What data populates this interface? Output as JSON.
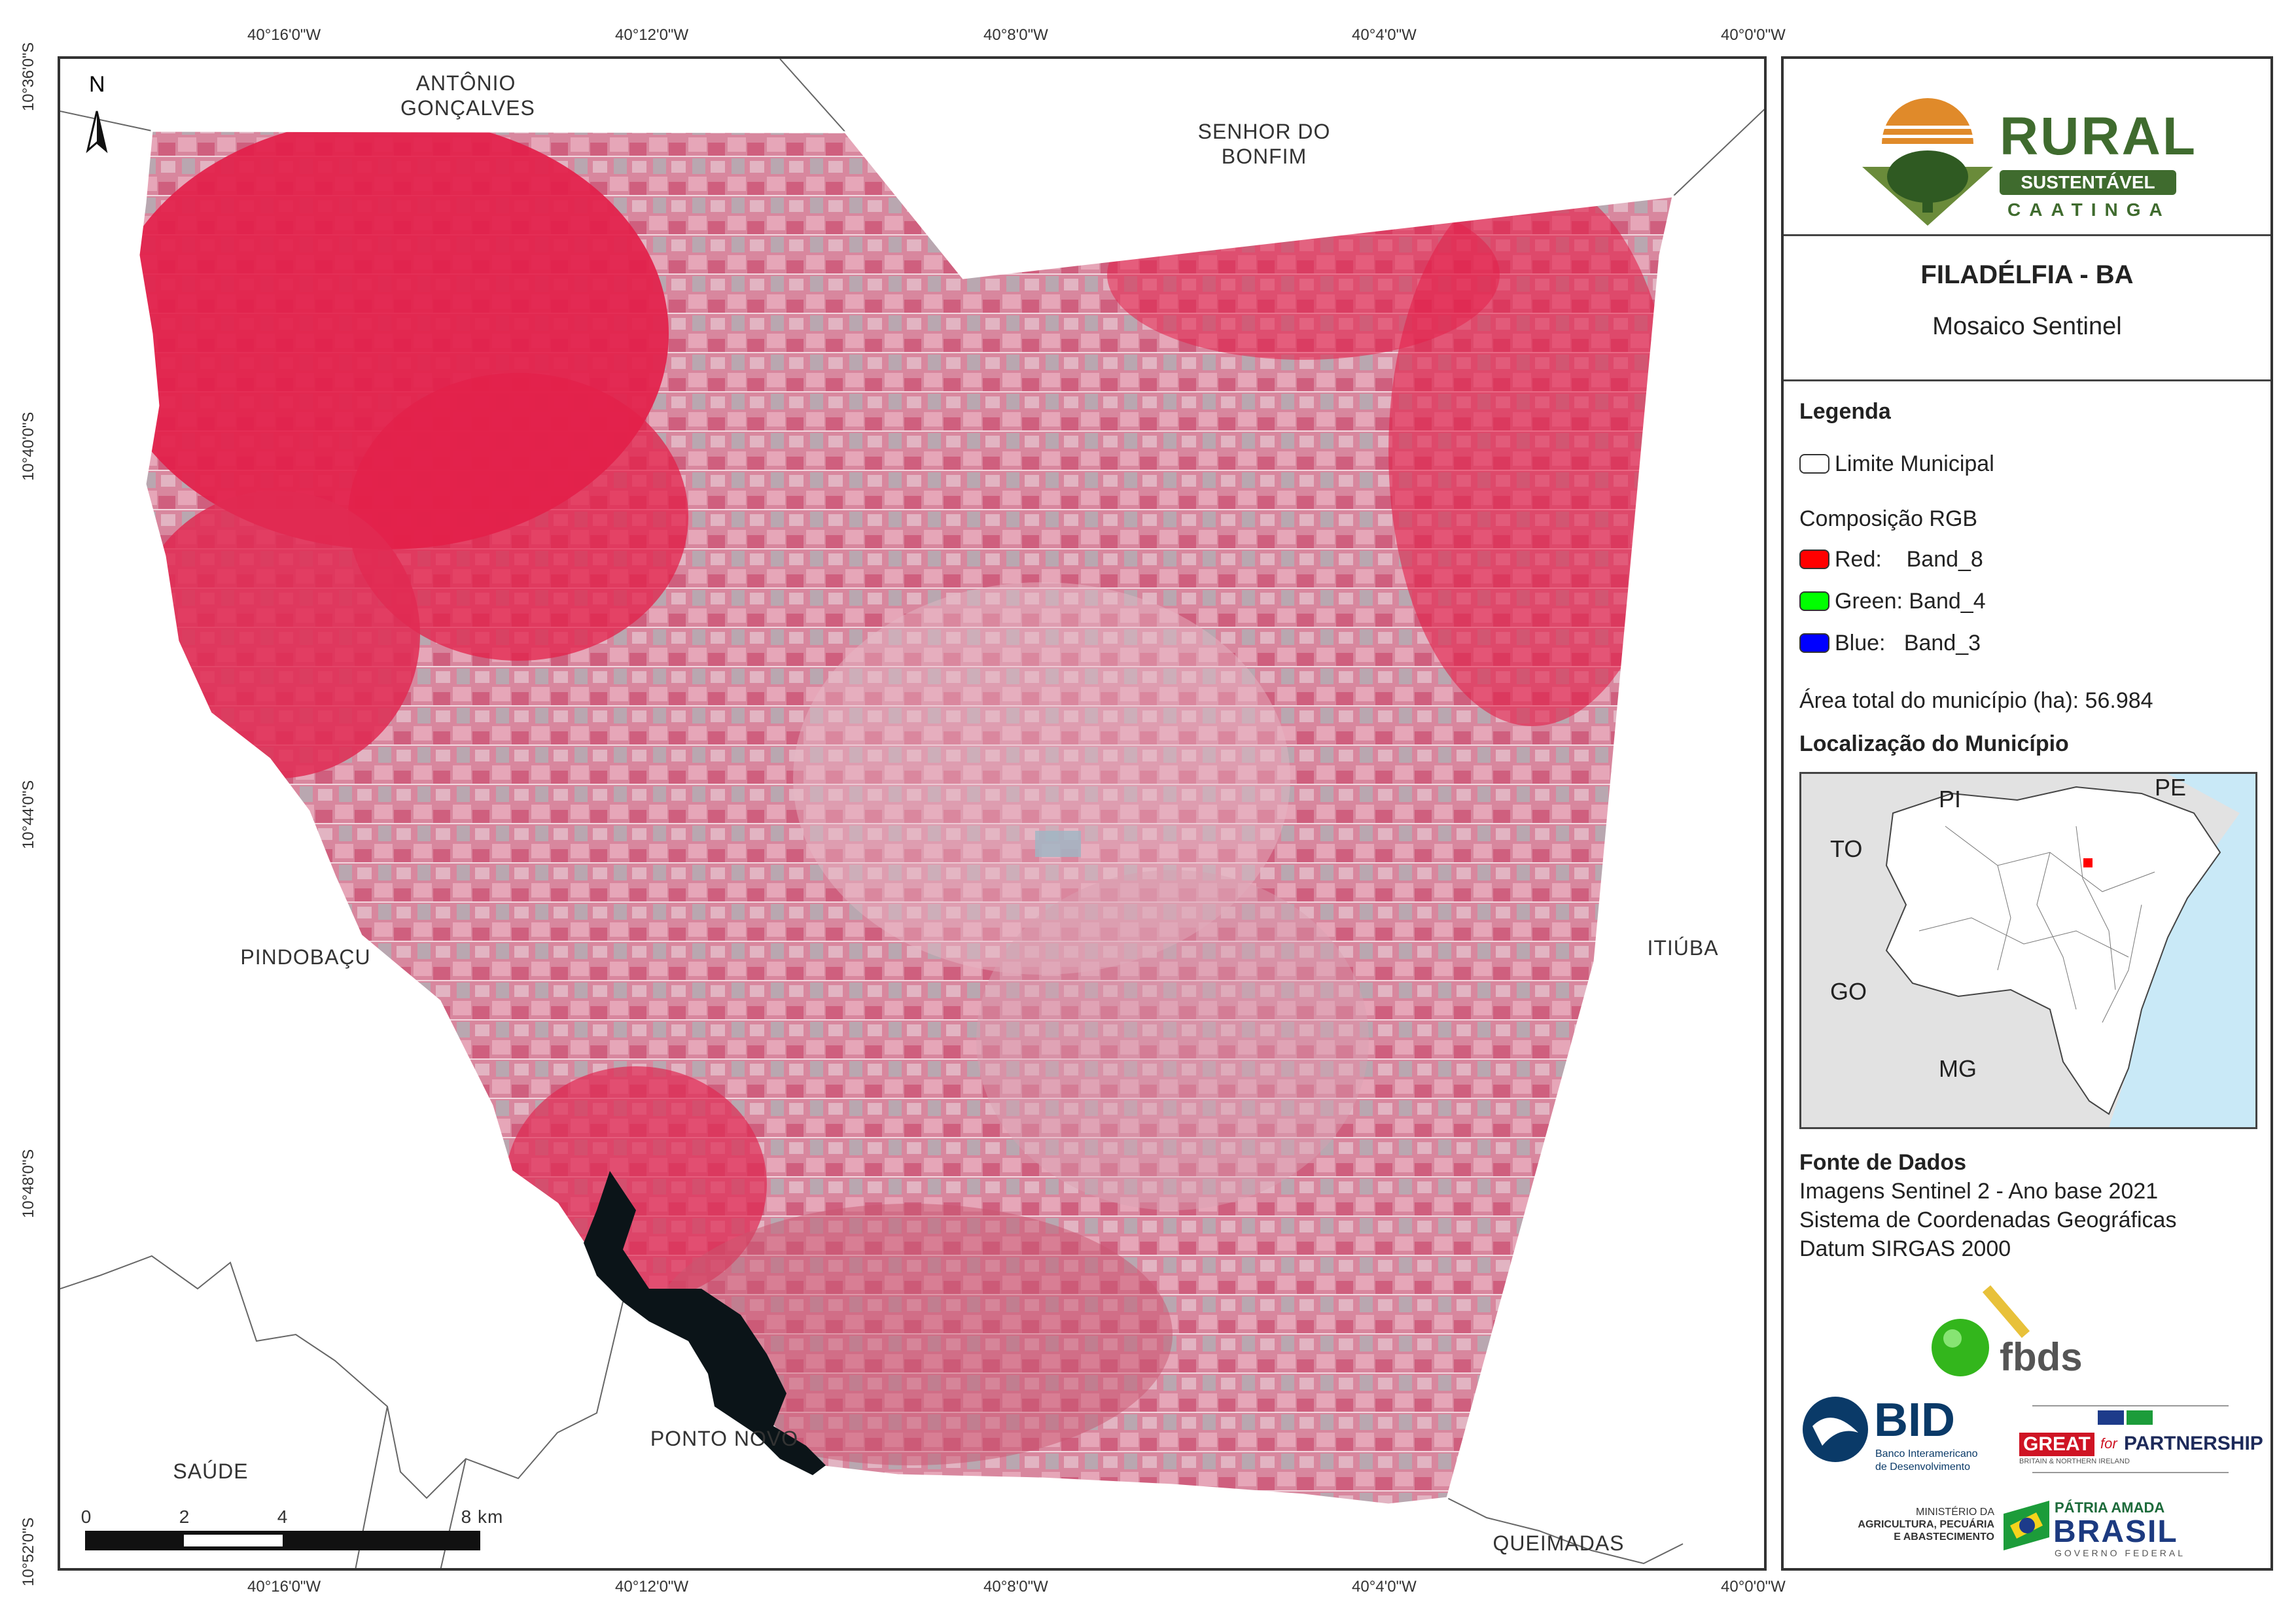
{
  "map": {
    "top_longitudes": [
      "40°16'0\"W",
      "40°12'0\"W",
      "40°8'0\"W",
      "40°4'0\"W",
      "40°0'0\"W"
    ],
    "bottom_longitudes": [
      "40°16'0\"W",
      "40°12'0\"W",
      "40°8'0\"W",
      "40°4'0\"W",
      "40°0'0\"W"
    ],
    "left_latitudes": [
      "10°36'0\"S",
      "10°40'0\"S",
      "10°44'0\"S",
      "10°48'0\"S",
      "10°52'0\"S"
    ],
    "north_label": "N",
    "neighbors": {
      "antonio": [
        "ANTÔNIO",
        "GONÇALVES"
      ],
      "senhor": [
        "SENHOR DO",
        "BONFIM"
      ],
      "pindobacu": "PINDOBAÇU",
      "itiuba": "ITIÚBA",
      "saude": "SAÚDE",
      "ponto_novo": "PONTO NOVO",
      "queimadas": "QUEIMADAS"
    },
    "scale_labels": [
      "0",
      "2",
      "4",
      "8 km"
    ]
  },
  "panel": {
    "logo": {
      "word": "RURAL",
      "ribbon": "SUSTENTÁVEL",
      "sub": "CAATINGA"
    },
    "title": "FILADÉLFIA - BA",
    "subtitle": "Mosaico Sentinel",
    "legend_heading": "Legenda",
    "limit_label": "Limite Municipal",
    "rgb_heading": "Composição RGB",
    "bands": [
      {
        "label": "Red:    Band_8",
        "color": "#ff0000"
      },
      {
        "label": "Green: Band_4",
        "color": "#00ff00"
      },
      {
        "label": "Blue:   Band_3",
        "color": "#0000ff"
      }
    ],
    "area_text": "Área total do município (ha): 56.984",
    "location_heading": "Localização do Município",
    "inset_labels": {
      "pi": "PI",
      "pe": "PE",
      "to": "TO",
      "go": "GO",
      "mg": "MG"
    },
    "sources_heading": "Fonte de Dados",
    "sources": [
      "Imagens Sentinel 2 - Ano base 2021",
      "Sistema de Coordenadas Geográficas",
      "Datum SIRGAS 2000"
    ],
    "fbds": "fbds",
    "bid": {
      "acronym": "BID",
      "line1": "Banco Interamericano",
      "line2": "de Desenvolvimento"
    },
    "great": {
      "great": "GREAT",
      "for": "for",
      "partnership": "PARTNERSHIP",
      "sub": "BRITAIN & NORTHERN IRELAND"
    },
    "ministry": [
      "MINISTÉRIO DA",
      "AGRICULTURA, PECUÁRIA",
      "E ABASTECIMENTO"
    ],
    "brasil": {
      "top": "PÁTRIA AMADA",
      "main": "BRASIL",
      "sub": "GOVERNO FEDERAL"
    }
  },
  "colors": {
    "vegetation": "#e3204a",
    "mosaic": "#d07a92",
    "frame": "#333333",
    "ocean": "#c9e9f7",
    "logo_green": "#3f6b2e",
    "logo_orange": "#e08a2a"
  }
}
